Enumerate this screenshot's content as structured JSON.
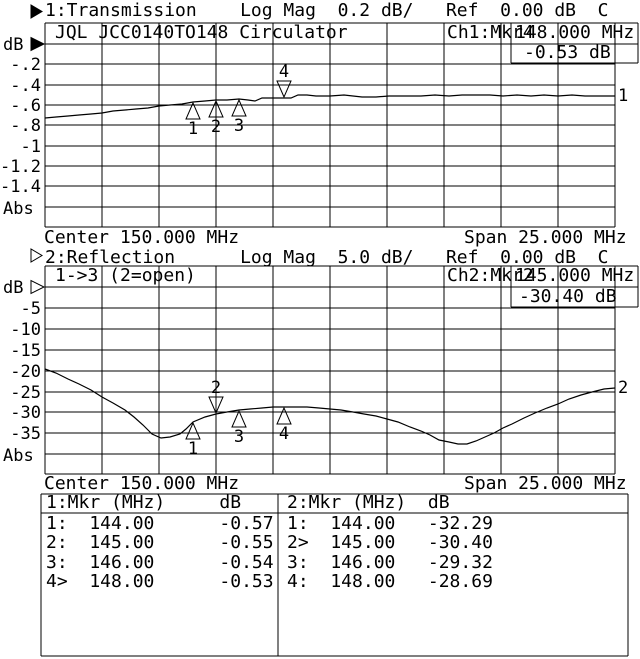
{
  "colors": {
    "background": "#ffffff",
    "foreground": "#000000"
  },
  "channel1": {
    "status_line": "1:Transmission    Log Mag  0.2 dB/   Ref  0.00 dB  C",
    "title": "JQL JCC0140TO148 Circulator",
    "marker_readout": {
      "channel_label": "Ch1:Mkr4",
      "freq": "148.000 MHz",
      "value": "-0.53 dB"
    },
    "center": "Center 150.000 MHz",
    "span": "Span 25.000 MHz"
  },
  "channel2": {
    "status_line": "2:Reflection      Log Mag  5.0 dB/   Ref  0.00 dB  C",
    "title": "1->3 (2=open)",
    "marker_readout": {
      "channel_label": "Ch2:Mkr2",
      "freq": "145.000 MHz",
      "value": "-30.40 dB"
    },
    "center": "Center 150.000 MHz",
    "span": "Span 25.000 MHz"
  },
  "marker_table": {
    "left": {
      "header": "1:Mkr (MHz)     dB",
      "value_gap": 6
    },
    "right": {
      "header": "2:Mkr (MHz)  dB",
      "value_gap": 3
    }
  },
  "chart_data": [
    {
      "id": "ch1",
      "type": "line",
      "trace_number": "1",
      "title": "Transmission",
      "format": "Log Mag",
      "scale_per_div": "0.2 dB/",
      "ref_level": "0.00 dB",
      "cal_flag": "C",
      "x_axis": {
        "center_mhz": 150.0,
        "span_mhz": 25.0,
        "min_mhz": 137.5,
        "max_mhz": 162.5,
        "divisions": 10
      },
      "y_axis": {
        "unit": "dB",
        "ref_db": 0.0,
        "db_per_div": 0.2,
        "top_label": "dB",
        "bottom_label": "Abs",
        "ticks": [
          {
            "label": "-.2",
            "value": -0.2
          },
          {
            "label": "-.4",
            "value": -0.4
          },
          {
            "label": "-.6",
            "value": -0.6
          },
          {
            "label": "-.8",
            "value": -0.8
          },
          {
            "label": "-1",
            "value": -1.0
          },
          {
            "label": "-1.2",
            "value": -1.2
          },
          {
            "label": "-1.4",
            "value": -1.4
          }
        ]
      },
      "trace_points": [
        [
          137.5,
          -0.73
        ],
        [
          138.0,
          -0.715
        ],
        [
          138.5,
          -0.703
        ],
        [
          139.0,
          -0.695
        ],
        [
          139.5,
          -0.685
        ],
        [
          140.0,
          -0.675
        ],
        [
          140.5,
          -0.663
        ],
        [
          141.0,
          -0.652
        ],
        [
          141.5,
          -0.643
        ],
        [
          142.0,
          -0.63
        ],
        [
          142.5,
          -0.613
        ],
        [
          143.0,
          -0.598
        ],
        [
          143.5,
          -0.585
        ],
        [
          144.0,
          -0.572
        ],
        [
          144.5,
          -0.562
        ],
        [
          145.0,
          -0.553
        ],
        [
          145.5,
          -0.548
        ],
        [
          146.0,
          -0.542
        ],
        [
          146.4,
          -0.547
        ],
        [
          146.7,
          -0.557
        ],
        [
          147.0,
          -0.532
        ],
        [
          147.5,
          -0.53
        ],
        [
          148.0,
          -0.53
        ],
        [
          148.3,
          -0.527
        ],
        [
          148.6,
          -0.503
        ],
        [
          149.0,
          -0.5
        ],
        [
          149.4,
          -0.513
        ],
        [
          150.0,
          -0.51
        ],
        [
          150.6,
          -0.505
        ],
        [
          151.0,
          -0.51
        ],
        [
          151.4,
          -0.52
        ],
        [
          152.0,
          -0.516
        ],
        [
          152.6,
          -0.51
        ],
        [
          153.2,
          -0.508
        ],
        [
          154.0,
          -0.51
        ],
        [
          154.6,
          -0.502
        ],
        [
          155.2,
          -0.508
        ],
        [
          155.8,
          -0.5
        ],
        [
          156.4,
          -0.506
        ],
        [
          157.0,
          -0.503
        ],
        [
          157.6,
          -0.508
        ],
        [
          158.2,
          -0.502
        ],
        [
          158.8,
          -0.507
        ],
        [
          159.4,
          -0.503
        ],
        [
          160.0,
          -0.508
        ],
        [
          160.6,
          -0.502
        ],
        [
          161.2,
          -0.507
        ],
        [
          161.8,
          -0.512
        ],
        [
          162.2,
          -0.515
        ],
        [
          162.5,
          -0.51
        ]
      ],
      "markers": [
        {
          "n": "1",
          "freq": 144.0,
          "freq_label": "144.00",
          "value": -0.57,
          "value_label": "-0.57",
          "active": false
        },
        {
          "n": "2",
          "freq": 145.0,
          "freq_label": "145.00",
          "value": -0.55,
          "value_label": "-0.55",
          "active": false
        },
        {
          "n": "3",
          "freq": 146.0,
          "freq_label": "146.00",
          "value": -0.54,
          "value_label": "-0.54",
          "active": false
        },
        {
          "n": "4",
          "freq": 148.0,
          "freq_label": "148.00",
          "value": -0.53,
          "value_label": "-0.53",
          "active": true
        }
      ]
    },
    {
      "id": "ch2",
      "type": "line",
      "trace_number": "2",
      "title": "Reflection",
      "format": "Log Mag",
      "scale_per_div": "5.0 dB/",
      "ref_level": "0.00 dB",
      "cal_flag": "C",
      "x_axis": {
        "center_mhz": 150.0,
        "span_mhz": 25.0,
        "min_mhz": 137.5,
        "max_mhz": 162.5,
        "divisions": 10
      },
      "y_axis": {
        "unit": "dB",
        "ref_db": 0.0,
        "db_per_div": 5.0,
        "top_label": "dB",
        "bottom_label": "Abs",
        "ticks": [
          {
            "label": "-5",
            "value": -5
          },
          {
            "label": "-10",
            "value": -10
          },
          {
            "label": "-15",
            "value": -15
          },
          {
            "label": "-20",
            "value": -20
          },
          {
            "label": "-25",
            "value": -25
          },
          {
            "label": "-30",
            "value": -30
          },
          {
            "label": "-35",
            "value": -35
          }
        ]
      },
      "trace_points": [
        [
          137.5,
          -19.5
        ],
        [
          138.0,
          -20.6
        ],
        [
          138.5,
          -21.9
        ],
        [
          139.0,
          -23.3
        ],
        [
          139.5,
          -24.7
        ],
        [
          140.0,
          -26.2
        ],
        [
          140.5,
          -27.8
        ],
        [
          141.0,
          -29.5
        ],
        [
          141.4,
          -31.0
        ],
        [
          141.8,
          -33.0
        ],
        [
          142.2,
          -35.2
        ],
        [
          142.6,
          -36.2
        ],
        [
          143.0,
          -36.0
        ],
        [
          143.4,
          -35.1
        ],
        [
          143.7,
          -34.0
        ],
        [
          144.0,
          -32.29
        ],
        [
          144.5,
          -31.2
        ],
        [
          145.0,
          -30.4
        ],
        [
          145.5,
          -29.85
        ],
        [
          146.0,
          -29.32
        ],
        [
          146.5,
          -29.1
        ],
        [
          147.0,
          -28.9
        ],
        [
          147.5,
          -28.8
        ],
        [
          148.0,
          -28.69
        ],
        [
          148.5,
          -28.62
        ],
        [
          149.0,
          -28.7
        ],
        [
          149.5,
          -28.9
        ],
        [
          150.0,
          -29.15
        ],
        [
          150.5,
          -29.45
        ],
        [
          151.0,
          -29.85
        ],
        [
          151.5,
          -30.3
        ],
        [
          152.0,
          -30.9
        ],
        [
          152.5,
          -31.6
        ],
        [
          153.0,
          -32.4
        ],
        [
          153.5,
          -33.4
        ],
        [
          154.0,
          -34.5
        ],
        [
          154.4,
          -35.5
        ],
        [
          154.8,
          -36.5
        ],
        [
          155.2,
          -37.2
        ],
        [
          155.6,
          -37.6
        ],
        [
          156.0,
          -37.5
        ],
        [
          156.4,
          -36.9
        ],
        [
          156.8,
          -36.0
        ],
        [
          157.2,
          -34.9
        ],
        [
          157.6,
          -33.8
        ],
        [
          158.0,
          -32.7
        ],
        [
          158.5,
          -31.4
        ],
        [
          159.0,
          -30.2
        ],
        [
          159.5,
          -29.0
        ],
        [
          160.0,
          -27.9
        ],
        [
          160.5,
          -26.8
        ],
        [
          161.0,
          -25.8
        ],
        [
          161.5,
          -25.0
        ],
        [
          162.0,
          -24.5
        ],
        [
          162.5,
          -24.2
        ]
      ],
      "markers": [
        {
          "n": "1",
          "freq": 144.0,
          "freq_label": "144.00",
          "value": -32.29,
          "value_label": "-32.29",
          "active": false
        },
        {
          "n": "2",
          "freq": 145.0,
          "freq_label": "145.00",
          "value": -30.4,
          "value_label": "-30.40",
          "active": true
        },
        {
          "n": "3",
          "freq": 146.0,
          "freq_label": "146.00",
          "value": -29.32,
          "value_label": "-29.32",
          "active": false
        },
        {
          "n": "4",
          "freq": 148.0,
          "freq_label": "148.00",
          "value": -28.69,
          "value_label": "-28.69",
          "active": false
        }
      ]
    }
  ]
}
